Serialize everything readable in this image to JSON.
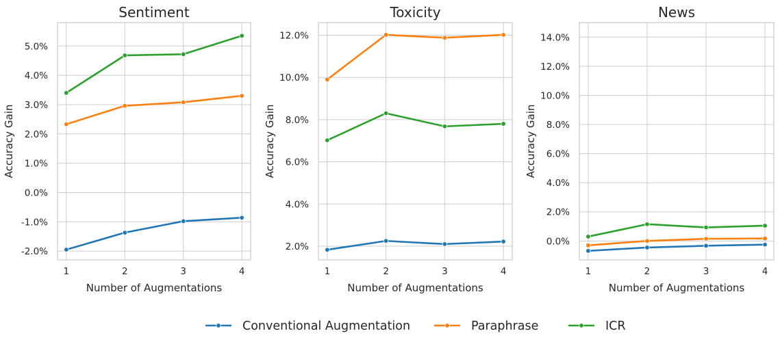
{
  "chart_data": [
    {
      "type": "line",
      "title": "Sentiment",
      "xlabel": "Number of Augmentations",
      "ylabel": "Accuracy Gain",
      "x": [
        1,
        2,
        3,
        4
      ],
      "xlim": [
        0.85,
        4.15
      ],
      "ylim": [
        -2.3,
        5.8
      ],
      "yticks": [
        -2.0,
        -1.0,
        0.0,
        1.0,
        2.0,
        3.0,
        4.0,
        5.0
      ],
      "ytick_labels": [
        "-2.0%",
        "-1.0%",
        "0.0%",
        "1.0%",
        "2.0%",
        "3.0%",
        "4.0%",
        "5.0%"
      ],
      "grid": true,
      "series": [
        {
          "name": "Conventional Augmentation",
          "values": [
            -1.95,
            -1.37,
            -0.98,
            -0.86
          ]
        },
        {
          "name": "Paraphrase",
          "values": [
            2.33,
            2.96,
            3.08,
            3.3
          ]
        },
        {
          "name": "ICR",
          "values": [
            3.4,
            4.68,
            4.72,
            5.35
          ]
        }
      ]
    },
    {
      "type": "line",
      "title": "Toxicity",
      "xlabel": "Number of Augmentations",
      "ylabel": "Accuracy Gain",
      "x": [
        1,
        2,
        3,
        4
      ],
      "xlim": [
        0.85,
        4.15
      ],
      "ylim": [
        1.35,
        12.6
      ],
      "yticks": [
        2.0,
        4.0,
        6.0,
        8.0,
        10.0,
        12.0
      ],
      "ytick_labels": [
        "2.0%",
        "4.0%",
        "6.0%",
        "8.0%",
        "10.0%",
        "12.0%"
      ],
      "grid": true,
      "series": [
        {
          "name": "Conventional Augmentation",
          "values": [
            1.83,
            2.25,
            2.1,
            2.22
          ]
        },
        {
          "name": "Paraphrase",
          "values": [
            9.9,
            12.02,
            11.88,
            12.02
          ]
        },
        {
          "name": "ICR",
          "values": [
            7.02,
            8.3,
            7.68,
            7.8
          ]
        }
      ]
    },
    {
      "type": "line",
      "title": "News",
      "xlabel": "Number of Augmentations",
      "ylabel": "Accuracy Gain",
      "x": [
        1,
        2,
        3,
        4
      ],
      "xlim": [
        0.85,
        4.15
      ],
      "ylim": [
        -1.3,
        15.0
      ],
      "yticks": [
        0.0,
        2.0,
        4.0,
        6.0,
        8.0,
        10.0,
        12.0,
        14.0
      ],
      "ytick_labels": [
        "0.0%",
        "2.0%",
        "4.0%",
        "6.0%",
        "8.0%",
        "10.0%",
        "12.0%",
        "14.0%"
      ],
      "grid": true,
      "series": [
        {
          "name": "Conventional Augmentation",
          "values": [
            -0.68,
            -0.45,
            -0.33,
            -0.25
          ]
        },
        {
          "name": "Paraphrase",
          "values": [
            -0.3,
            0.0,
            0.15,
            0.17
          ]
        },
        {
          "name": "ICR",
          "values": [
            0.3,
            1.15,
            0.93,
            1.05
          ]
        }
      ]
    }
  ],
  "legend": {
    "placement": "bottom-center",
    "items": [
      {
        "label": "Conventional Augmentation",
        "color": "#1f77b4"
      },
      {
        "label": "Paraphrase",
        "color": "#ff7f0e"
      },
      {
        "label": "ICR",
        "color": "#2ca02c"
      }
    ]
  }
}
